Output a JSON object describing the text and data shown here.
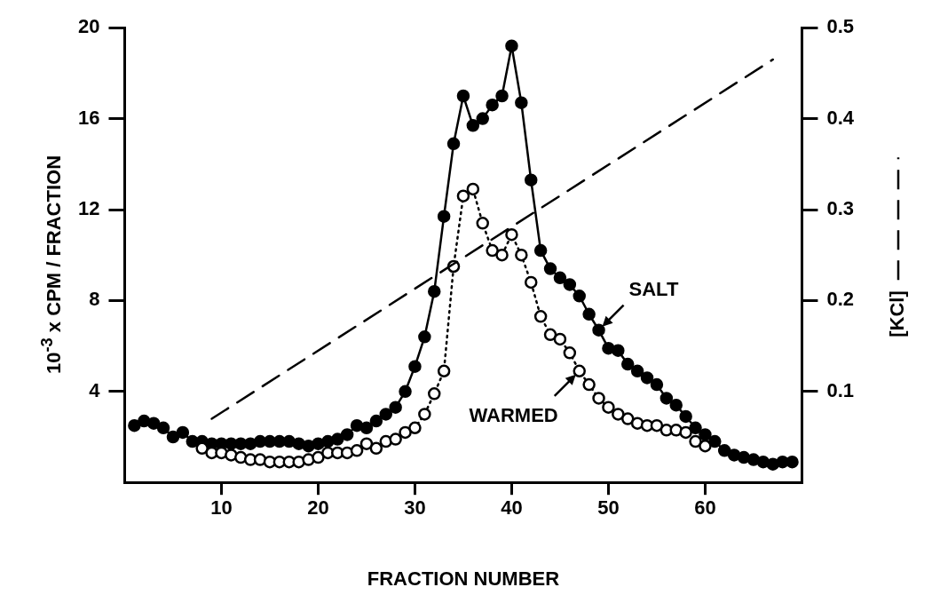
{
  "chart_data": {
    "type": "line",
    "xlabel": "FRACTION NUMBER",
    "ylabel": "10$^{-3}$ x CPM / FRACTION",
    "y2label": "[KCl]",
    "xlim": [
      0,
      70
    ],
    "xticks": [
      10,
      20,
      30,
      40,
      50,
      60
    ],
    "ylim": [
      0,
      20
    ],
    "yticks": [
      4,
      8,
      12,
      16,
      20
    ],
    "y2lim": [
      0,
      0.5
    ],
    "y2ticks": [
      0.1,
      0.2,
      0.3,
      0.4,
      0.5
    ],
    "grid": false,
    "legend": false,
    "series": [
      {
        "color": "#000000",
        "marker": "circle",
        "line_style": "solid",
        "x": [
          1,
          2,
          3,
          4,
          5,
          6,
          7,
          8,
          9,
          10,
          11,
          12,
          13,
          14,
          15,
          16,
          17,
          18,
          19,
          20,
          21,
          22,
          23,
          24,
          25,
          26,
          27,
          28,
          29,
          30,
          31,
          32,
          33,
          34,
          35,
          36,
          37,
          38,
          39,
          40,
          41,
          42,
          43,
          44,
          45,
          46,
          47,
          48,
          49,
          50,
          51,
          52,
          53,
          54,
          55,
          56,
          57,
          58,
          59,
          60,
          61,
          62,
          63,
          64,
          65,
          66,
          67,
          68,
          69
        ],
        "values": [
          2.5,
          2.7,
          2.6,
          2.4,
          2.0,
          2.2,
          1.8,
          1.8,
          1.7,
          1.7,
          1.7,
          1.7,
          1.7,
          1.8,
          1.8,
          1.8,
          1.8,
          1.7,
          1.6,
          1.7,
          1.8,
          1.9,
          2.1,
          2.5,
          2.4,
          2.7,
          3.0,
          3.3,
          4.0,
          5.1,
          6.4,
          8.4,
          11.7,
          14.9,
          17.0,
          15.7,
          16.0,
          16.6,
          17.0,
          19.2,
          16.7,
          13.3,
          10.2,
          9.4,
          9.0,
          8.7,
          8.2,
          7.4,
          6.7,
          5.9,
          5.8,
          5.2,
          4.9,
          4.6,
          4.3,
          3.7,
          3.4,
          2.9,
          2.4,
          2.1,
          1.8,
          1.4,
          1.2,
          1.1,
          1.0,
          0.9,
          0.8,
          0.9,
          0.9
        ]
      },
      {
        "color": "#000000",
        "marker": "circle",
        "line_style": "dotted",
        "x": [
          8,
          9,
          10,
          11,
          12,
          13,
          14,
          15,
          16,
          17,
          18,
          19,
          20,
          21,
          22,
          23,
          24,
          25,
          26,
          27,
          28,
          29,
          30,
          31,
          32,
          33,
          34,
          35,
          36,
          37,
          38,
          39,
          40,
          41,
          42,
          43,
          44,
          45,
          46,
          47,
          48,
          49,
          50,
          51,
          52,
          53,
          54,
          55,
          56,
          57,
          58,
          59,
          60
        ],
        "values": [
          1.5,
          1.3,
          1.3,
          1.2,
          1.1,
          1.0,
          1.0,
          0.9,
          0.9,
          0.9,
          0.9,
          1.0,
          1.1,
          1.3,
          1.3,
          1.3,
          1.4,
          1.7,
          1.5,
          1.8,
          1.9,
          2.2,
          2.4,
          3.0,
          3.9,
          4.9,
          9.5,
          12.6,
          12.9,
          11.4,
          10.2,
          10.0,
          10.9,
          10.0,
          8.8,
          7.3,
          6.5,
          6.3,
          5.7,
          4.9,
          4.3,
          3.7,
          3.3,
          3.0,
          2.8,
          2.6,
          2.5,
          2.5,
          2.3,
          2.3,
          2.2,
          1.8,
          1.6
        ]
      },
      {
        "axis": "y2",
        "color": "#000000",
        "marker": "none",
        "line_style": "dashed",
        "x": [
          9,
          67
        ],
        "values": [
          0.07,
          0.465
        ]
      }
    ],
    "annotations": [
      {
        "text": "SALT",
        "x": 49,
        "y": 6.7
      },
      {
        "text": "WARMED",
        "x": 47,
        "y": 4.9
      }
    ]
  }
}
